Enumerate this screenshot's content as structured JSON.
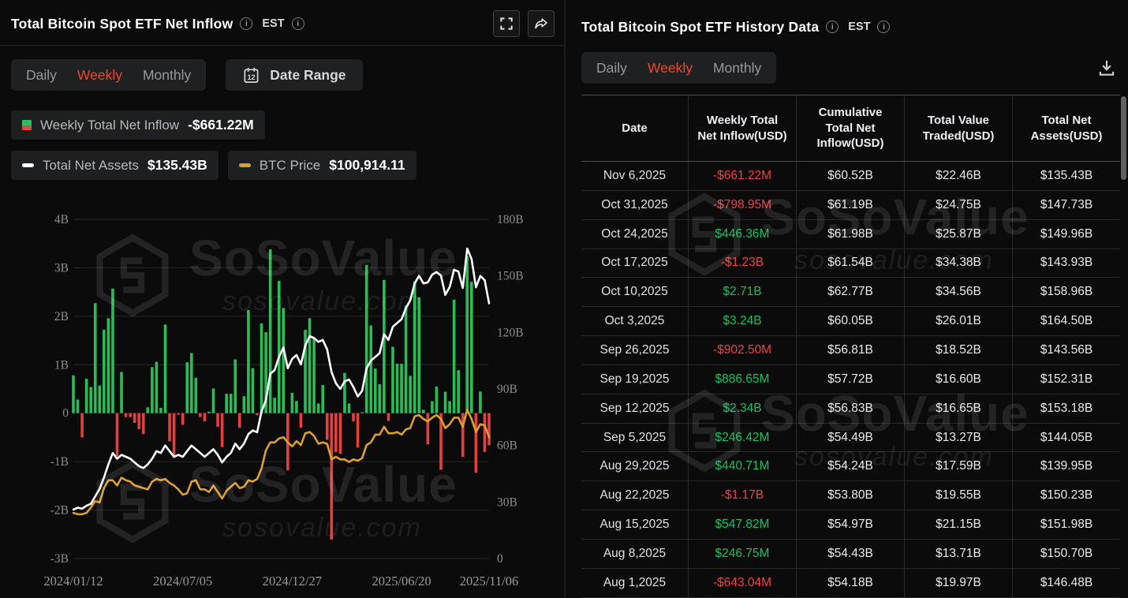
{
  "watermark": {
    "brand": "SoSoValue",
    "domain": "sosovalue.com"
  },
  "left_panel": {
    "title": "Total Bitcoin Spot ETF Net Inflow",
    "timezone": "EST",
    "tabs": [
      "Daily",
      "Weekly",
      "Monthly"
    ],
    "active_tab": "Weekly",
    "date_range_label": "Date Range",
    "calendar_icon_day": "12",
    "legend": [
      {
        "label": "Weekly Total Net Inflow",
        "value": "-$661.22M",
        "icon": "bar-green-red-icon"
      },
      {
        "label": "Total Net Assets",
        "value": "$135.43B",
        "icon": "white-dash-icon"
      },
      {
        "label": "BTC Price",
        "value": "$100,914.11",
        "icon": "orange-dash-icon"
      }
    ]
  },
  "right_panel": {
    "title": "Total Bitcoin Spot ETF History Data",
    "timezone": "EST",
    "tabs": [
      "Daily",
      "Weekly",
      "Monthly"
    ],
    "active_tab": "Weekly",
    "table": {
      "columns": [
        "Date",
        "Weekly Total Net Inflow(USD)",
        "Cumulative Total Net Inflow(USD)",
        "Total Value Traded(USD)",
        "Total Net Assets(USD)"
      ],
      "rows": [
        {
          "date": "Nov 6,2025",
          "inflow": "-$661.22M",
          "cumulative": "$60.52B",
          "traded": "$22.46B",
          "assets": "$135.43B"
        },
        {
          "date": "Oct 31,2025",
          "inflow": "-$798.95M",
          "cumulative": "$61.19B",
          "traded": "$24.75B",
          "assets": "$147.73B"
        },
        {
          "date": "Oct 24,2025",
          "inflow": "$446.36M",
          "cumulative": "$61.98B",
          "traded": "$25.87B",
          "assets": "$149.96B"
        },
        {
          "date": "Oct 17,2025",
          "inflow": "-$1.23B",
          "cumulative": "$61.54B",
          "traded": "$34.38B",
          "assets": "$143.93B"
        },
        {
          "date": "Oct 10,2025",
          "inflow": "$2.71B",
          "cumulative": "$62.77B",
          "traded": "$34.56B",
          "assets": "$158.96B"
        },
        {
          "date": "Oct 3,2025",
          "inflow": "$3.24B",
          "cumulative": "$60.05B",
          "traded": "$26.01B",
          "assets": "$164.50B"
        },
        {
          "date": "Sep 26,2025",
          "inflow": "-$902.50M",
          "cumulative": "$56.81B",
          "traded": "$18.52B",
          "assets": "$143.56B"
        },
        {
          "date": "Sep 19,2025",
          "inflow": "$886.65M",
          "cumulative": "$57.72B",
          "traded": "$16.60B",
          "assets": "$152.31B"
        },
        {
          "date": "Sep 12,2025",
          "inflow": "$2.34B",
          "cumulative": "$56.83B",
          "traded": "$16.65B",
          "assets": "$153.18B"
        },
        {
          "date": "Sep 5,2025",
          "inflow": "$246.42M",
          "cumulative": "$54.49B",
          "traded": "$13.27B",
          "assets": "$144.05B"
        },
        {
          "date": "Aug 29,2025",
          "inflow": "$440.71M",
          "cumulative": "$54.24B",
          "traded": "$17.59B",
          "assets": "$139.95B"
        },
        {
          "date": "Aug 22,2025",
          "inflow": "-$1.17B",
          "cumulative": "$53.80B",
          "traded": "$19.55B",
          "assets": "$150.23B"
        },
        {
          "date": "Aug 15,2025",
          "inflow": "$547.82M",
          "cumulative": "$54.97B",
          "traded": "$21.15B",
          "assets": "$151.98B"
        },
        {
          "date": "Aug 8,2025",
          "inflow": "$246.75M",
          "cumulative": "$54.43B",
          "traded": "$13.71B",
          "assets": "$150.70B"
        },
        {
          "date": "Aug 1,2025",
          "inflow": "-$643.04M",
          "cumulative": "$54.18B",
          "traded": "$19.97B",
          "assets": "$146.48B"
        }
      ]
    }
  },
  "chart_data": {
    "type": "bar+line",
    "title": "Total Bitcoin Spot ETF Net Inflow (Weekly)",
    "grid": true,
    "left_axis": {
      "ticks": [
        "4B",
        "3B",
        "2B",
        "1B",
        "0",
        "-1B",
        "-2B",
        "-3B"
      ],
      "range": [
        -3,
        4
      ],
      "unit": "USD billions"
    },
    "right_axis": {
      "ticks": [
        "180B",
        "150B",
        "120B",
        "90B",
        "60B",
        "30B",
        "0"
      ],
      "range": [
        0,
        180
      ],
      "unit": "USD billions"
    },
    "x_tick_labels": [
      "2024/01/12",
      "2024/07/05",
      "2024/12/27",
      "2025/06/20",
      "2025/11/06"
    ],
    "x_tick_indices": [
      0,
      25,
      50,
      75,
      95
    ],
    "dates": [
      "2024/01/12",
      "2024/01/19",
      "2024/01/26",
      "2024/02/02",
      "2024/02/09",
      "2024/02/16",
      "2024/02/23",
      "2024/03/01",
      "2024/03/08",
      "2024/03/15",
      "2024/03/22",
      "2024/03/29",
      "2024/04/05",
      "2024/04/12",
      "2024/04/19",
      "2024/04/26",
      "2024/05/03",
      "2024/05/10",
      "2024/05/17",
      "2024/05/24",
      "2024/05/31",
      "2024/06/07",
      "2024/06/14",
      "2024/06/21",
      "2024/06/28",
      "2024/07/05",
      "2024/07/12",
      "2024/07/19",
      "2024/07/26",
      "2024/08/02",
      "2024/08/09",
      "2024/08/16",
      "2024/08/23",
      "2024/08/30",
      "2024/09/06",
      "2024/09/13",
      "2024/09/20",
      "2024/09/27",
      "2024/10/04",
      "2024/10/11",
      "2024/10/18",
      "2024/10/25",
      "2024/11/01",
      "2024/11/08",
      "2024/11/15",
      "2024/11/22",
      "2024/11/29",
      "2024/12/06",
      "2024/12/13",
      "2024/12/20",
      "2024/12/27",
      "2025/01/03",
      "2025/01/10",
      "2025/01/17",
      "2025/01/24",
      "2025/01/31",
      "2025/02/07",
      "2025/02/14",
      "2025/02/21",
      "2025/02/28",
      "2025/03/07",
      "2025/03/14",
      "2025/03/21",
      "2025/03/28",
      "2025/04/04",
      "2025/04/11",
      "2025/04/18",
      "2025/04/25",
      "2025/05/02",
      "2025/05/09",
      "2025/05/16",
      "2025/05/23",
      "2025/05/30",
      "2025/06/06",
      "2025/06/13",
      "2025/06/20",
      "2025/06/27",
      "2025/07/04",
      "2025/07/11",
      "2025/07/18",
      "2025/07/25",
      "2025/08/01",
      "2025/08/08",
      "2025/08/15",
      "2025/08/22",
      "2025/08/29",
      "2025/09/05",
      "2025/09/12",
      "2025/09/19",
      "2025/09/26",
      "2025/10/03",
      "2025/10/10",
      "2025/10/17",
      "2025/10/24",
      "2025/10/31",
      "2025/11/06"
    ],
    "series": [
      {
        "name": "Weekly Total Net Inflow",
        "type": "bar",
        "axis": "left",
        "color_pos": "#2abd55",
        "color_neg": "#e73e3e",
        "values": [
          0.78,
          0.28,
          -0.5,
          0.71,
          0.54,
          2.27,
          0.57,
          1.72,
          1.96,
          2.57,
          -0.89,
          0.85,
          -0.08,
          -0.08,
          -0.2,
          -0.33,
          -0.43,
          0.12,
          0.95,
          1.06,
          0.11,
          1.83,
          -0.58,
          -0.92,
          -0.03,
          -0.24,
          1.05,
          1.24,
          0.73,
          -0.08,
          -0.17,
          0.03,
          0.51,
          -0.28,
          -0.7,
          0.4,
          0.4,
          1.11,
          -0.3,
          0.35,
          2.13,
          0.93,
          -0.04,
          1.85,
          1.67,
          3.38,
          0.32,
          2.73,
          2.17,
          -1.18,
          0.42,
          0.25,
          -0.3,
          1.72,
          1.96,
          1.56,
          0.2,
          0.58,
          -0.55,
          -2.61,
          -0.8,
          -0.84,
          0.83,
          0.2,
          -0.17,
          -0.71,
          0.02,
          3.06,
          1.81,
          0.92,
          0.6,
          2.75,
          -0.16,
          1.37,
          1.02,
          1.02,
          2.22,
          0.77,
          2.72,
          2.39,
          0.07,
          -0.643,
          0.247,
          0.548,
          -1.17,
          0.441,
          0.246,
          2.34,
          0.887,
          -0.903,
          3.24,
          2.71,
          -1.23,
          0.446,
          -0.799,
          -0.661
        ]
      },
      {
        "name": "Total Net Assets",
        "type": "line",
        "axis": "right",
        "color": "#ffffff",
        "values": [
          26,
          27,
          26.5,
          28,
          29,
          33,
          37,
          43,
          50,
          56,
          53,
          55,
          54,
          53,
          51,
          49,
          48,
          50,
          53,
          57,
          56,
          60,
          57,
          54,
          55,
          54,
          57,
          60,
          58,
          56,
          54,
          56,
          58,
          55,
          51,
          54,
          56,
          61,
          58,
          61,
          66,
          68,
          67,
          78,
          84,
          98,
          100,
          107,
          112,
          101,
          106,
          108,
          103,
          113,
          118,
          117,
          115,
          116,
          111,
          99,
          93,
          90,
          94,
          95,
          91,
          86,
          89,
          101,
          105,
          107,
          109,
          119,
          116,
          123,
          125,
          127,
          133,
          137,
          146,
          150,
          146,
          146.5,
          150.7,
          152,
          150.2,
          139.9,
          144.1,
          153.2,
          152.3,
          143.6,
          164.5,
          159,
          143.9,
          150,
          147.7,
          135.4
        ]
      },
      {
        "name": "BTC Price",
        "type": "line",
        "axis": "price",
        "color": "#dc9f31",
        "unit": "USD thousands",
        "scale_range_k": [
          8,
          268
        ],
        "values": [
          43,
          42,
          42,
          43,
          47,
          52,
          51,
          62,
          68,
          68,
          64,
          70,
          68,
          67,
          64,
          63,
          62,
          61,
          67,
          69,
          68,
          69,
          66,
          64,
          61,
          57,
          58,
          67,
          68,
          61,
          61,
          59,
          64,
          59,
          54,
          60,
          63,
          66,
          62,
          63,
          68,
          67,
          69,
          77,
          91,
          97,
          97,
          100,
          101,
          97,
          94,
          98,
          95,
          104,
          105,
          102,
          96,
          97,
          96,
          84,
          86,
          84,
          84,
          82,
          84,
          83,
          85,
          95,
          97,
          103,
          103,
          109,
          104,
          104,
          105,
          103,
          107,
          108,
          117,
          118,
          115,
          113,
          116,
          118,
          115,
          108,
          111,
          116,
          116,
          109,
          122,
          115,
          105,
          111,
          110,
          101
        ]
      }
    ]
  }
}
